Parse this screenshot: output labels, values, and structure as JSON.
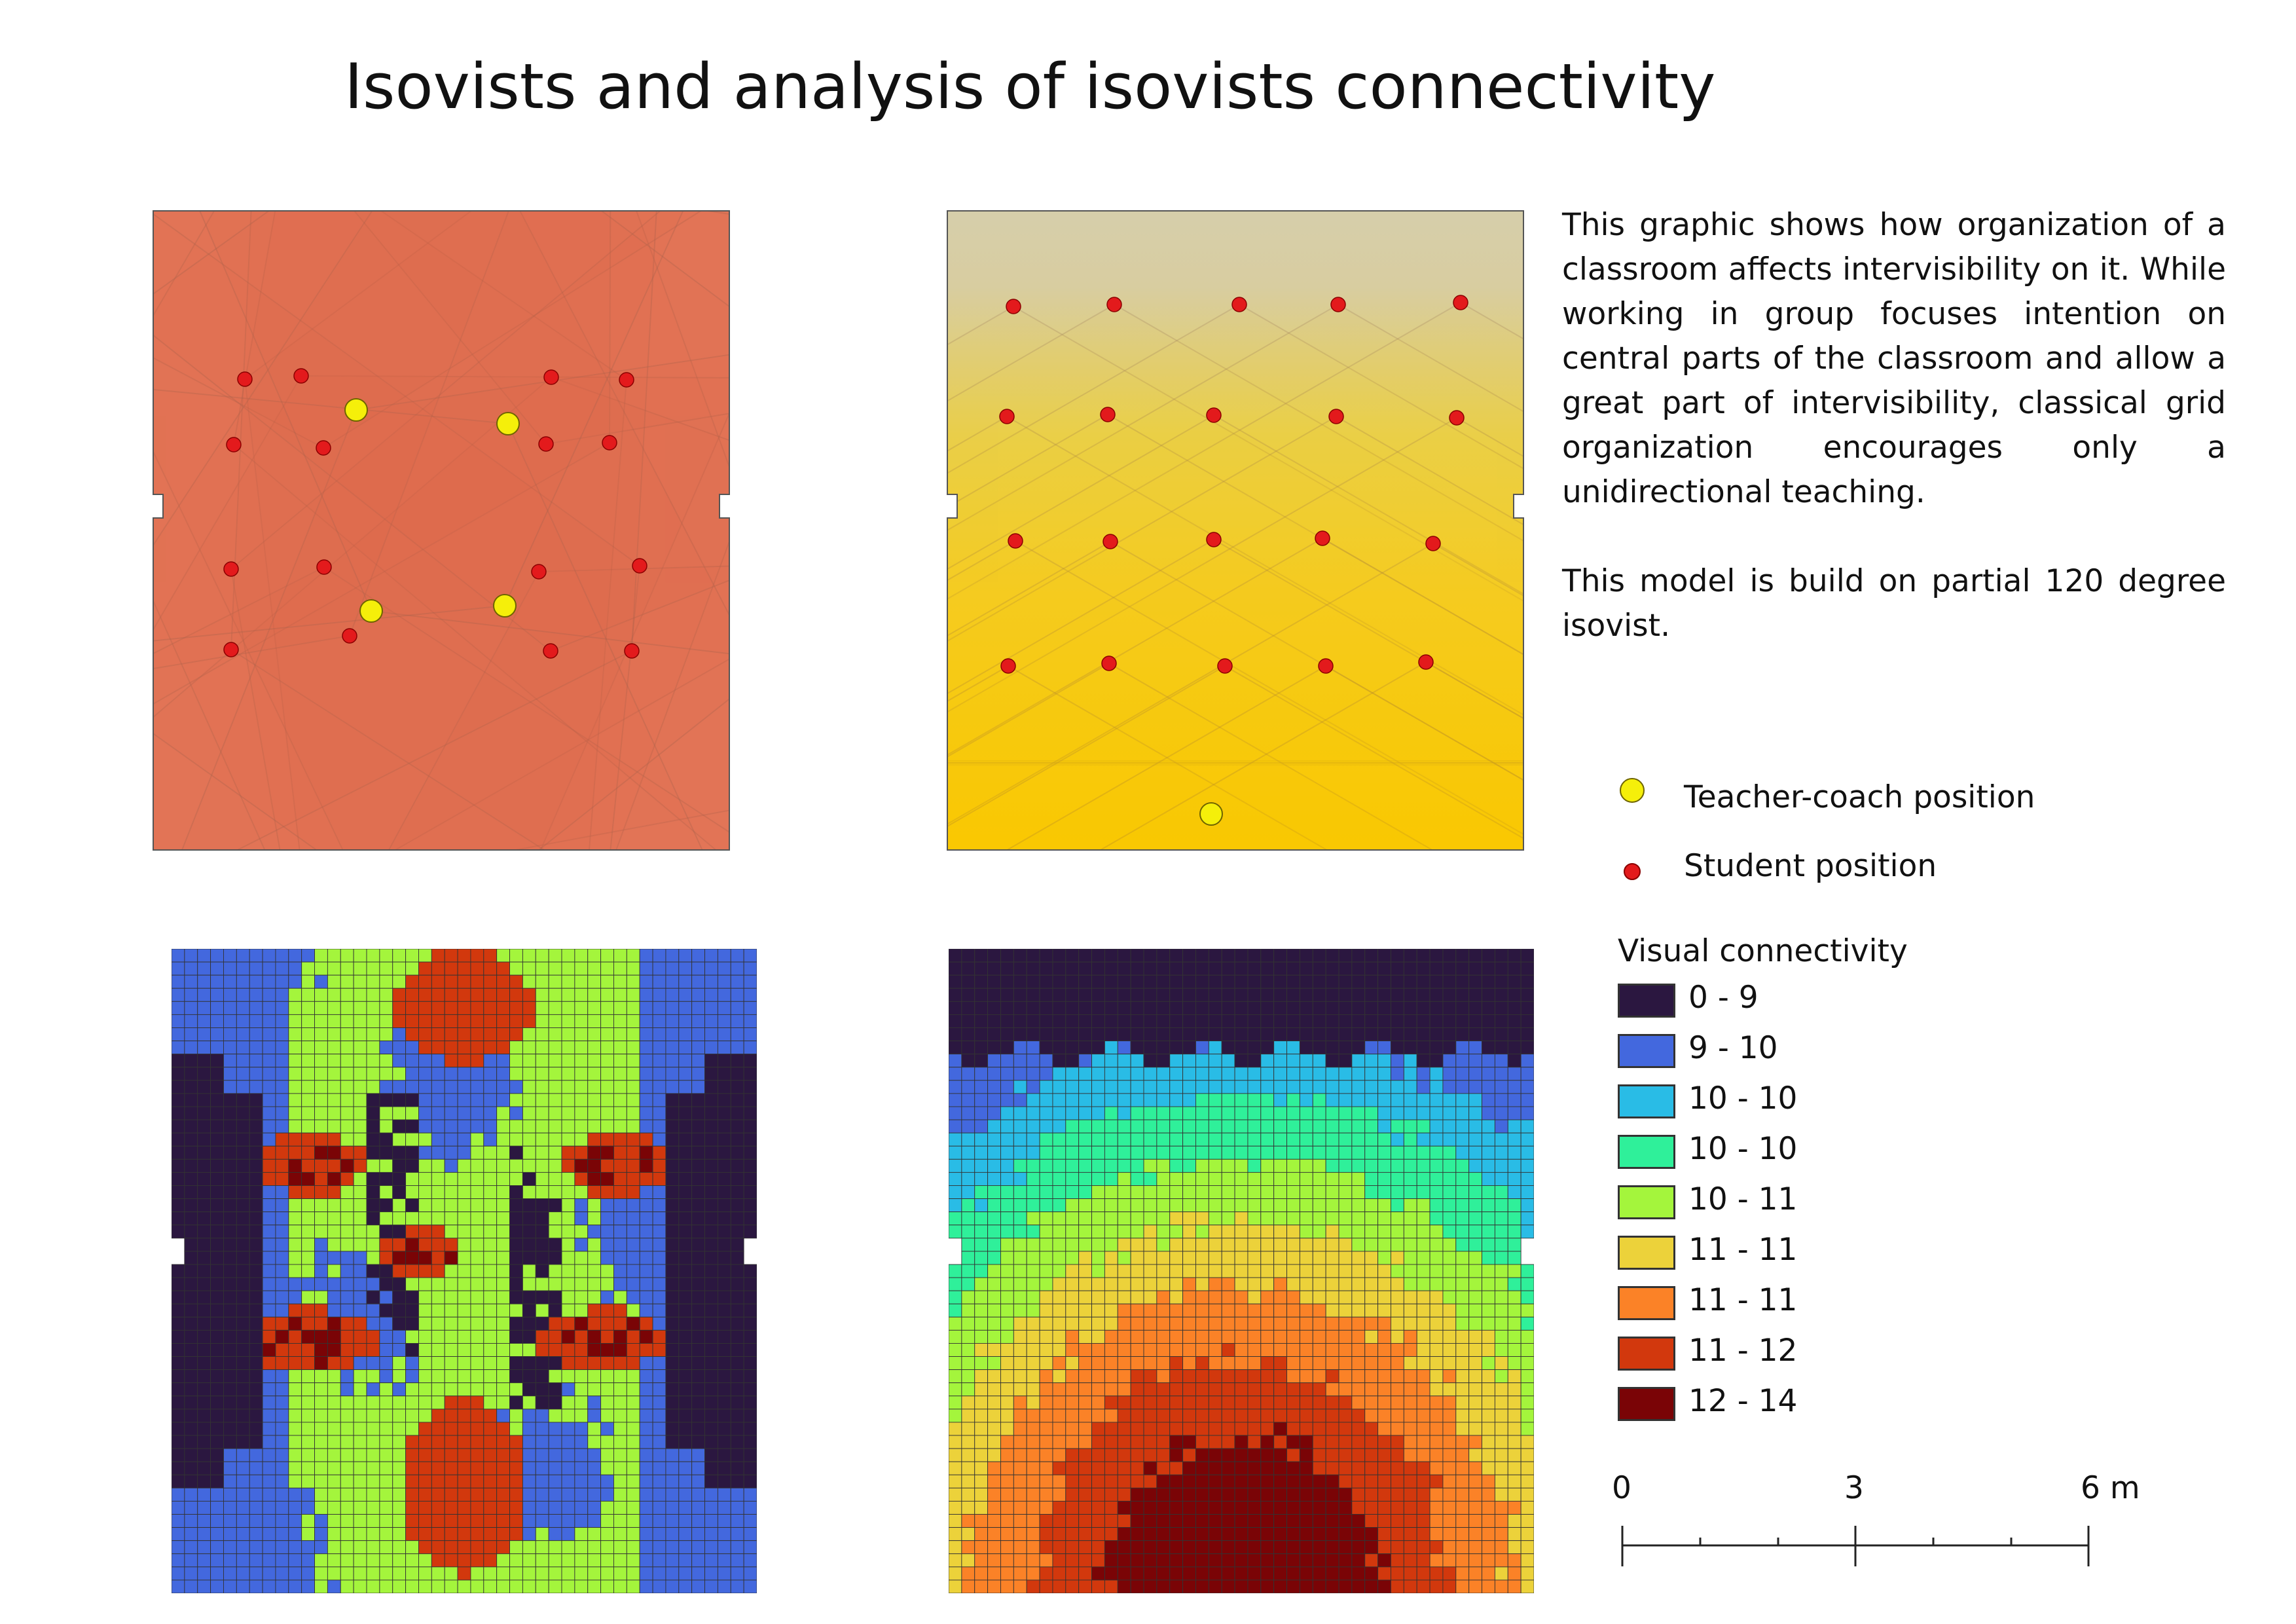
{
  "title": "Isovists and analysis of isovists connectivity",
  "description": {
    "paragraph1": "This graphic shows how organization of a classroom affects intervisibility on it. While working in group focuses intention on central parts of the classroom and allow a great part of intervisibility, classical grid organization encourages only a unidirectional teaching.",
    "paragraph2": "This model is build on partial 120 degree isovist."
  },
  "legend": {
    "teacher_label": "Teacher-coach position",
    "student_label": "Student position",
    "teacher_color": "#f5ef0a",
    "student_color": "#e31a1c",
    "connectivity_title": "Visual connectivity",
    "classes": [
      {
        "label": "0 - 9",
        "color": "#2b1740"
      },
      {
        "label": "9 - 10",
        "color": "#4368de"
      },
      {
        "label": "10 - 10",
        "color": "#29bce6"
      },
      {
        "label": "10 - 10",
        "color": "#2ff09a"
      },
      {
        "label": "10 - 11",
        "color": "#a4f53c"
      },
      {
        "label": "11 - 11",
        "color": "#ecd23a"
      },
      {
        "label": "11 - 11",
        "color": "#fb8227"
      },
      {
        "label": "11 - 12",
        "color": "#d2380d"
      },
      {
        "label": "12 - 14",
        "color": "#7a0406"
      }
    ]
  },
  "scale_bar": {
    "tick_0": "0",
    "tick_mid": "3",
    "tick_end": "6 m"
  },
  "colors": {
    "isovist_group": "#e36d51",
    "isovist_grid_top": "#d6ceab",
    "isovist_grid_bottom": "#fdc902",
    "room_outline": "#555555"
  }
}
